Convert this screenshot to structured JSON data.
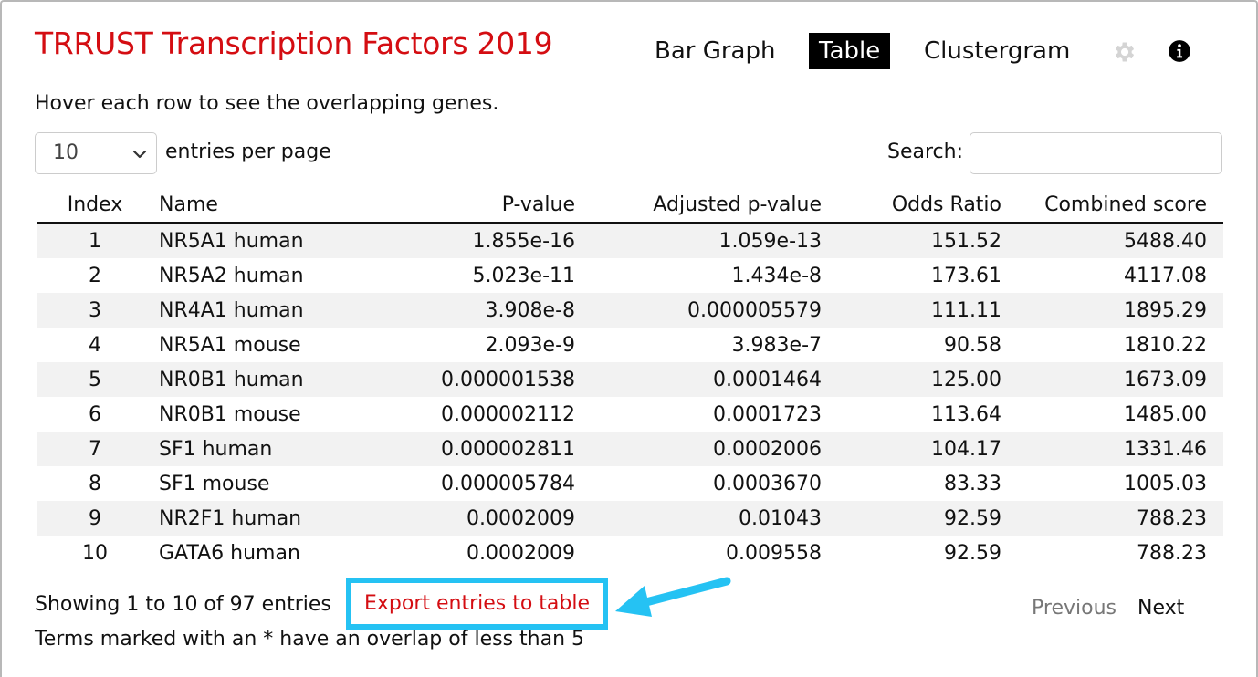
{
  "header": {
    "title": "TRRUST Transcription Factors 2019",
    "tabs": [
      "Bar Graph",
      "Table",
      "Clustergram"
    ],
    "active_tab": "Table",
    "settings_icon": "gear-icon",
    "info_icon": "info-icon"
  },
  "hint": "Hover each row to see the overlapping genes.",
  "page_size": {
    "selected": "10",
    "label": "entries per page"
  },
  "search": {
    "label": "Search:",
    "value": "",
    "placeholder": ""
  },
  "table": {
    "columns": [
      "Index",
      "Name",
      "P-value",
      "Adjusted p-value",
      "Odds Ratio",
      "Combined score"
    ],
    "rows": [
      [
        "1",
        "NR5A1 human",
        "1.855e-16",
        "1.059e-13",
        "151.52",
        "5488.40"
      ],
      [
        "2",
        "NR5A2 human",
        "5.023e-11",
        "1.434e-8",
        "173.61",
        "4117.08"
      ],
      [
        "3",
        "NR4A1 human",
        "3.908e-8",
        "0.000005579",
        "111.11",
        "1895.29"
      ],
      [
        "4",
        "NR5A1 mouse",
        "2.093e-9",
        "3.983e-7",
        "90.58",
        "1810.22"
      ],
      [
        "5",
        "NR0B1 human",
        "0.000001538",
        "0.0001464",
        "125.00",
        "1673.09"
      ],
      [
        "6",
        "NR0B1 mouse",
        "0.000002112",
        "0.0001723",
        "113.64",
        "1485.00"
      ],
      [
        "7",
        "SF1 human",
        "0.000002811",
        "0.0002006",
        "104.17",
        "1331.46"
      ],
      [
        "8",
        "SF1 mouse",
        "0.000005784",
        "0.0003670",
        "83.33",
        "1005.03"
      ],
      [
        "9",
        "NR2F1 human",
        "0.0002009",
        "0.01043",
        "92.59",
        "788.23"
      ],
      [
        "10",
        "GATA6 human",
        "0.0002009",
        "0.009558",
        "92.59",
        "788.23"
      ]
    ]
  },
  "footer": {
    "showing": "Showing 1 to 10 of 97 entries",
    "export": "Export entries to table",
    "previous": "Previous",
    "next": "Next",
    "note": "Terms marked with an * have an overlap of less than 5"
  },
  "colors": {
    "title": "#d40d12",
    "export_link": "#d40d12",
    "highlight": "#25c2f3",
    "active_tab_bg": "#000000",
    "stripe": "#f2f2f2"
  }
}
